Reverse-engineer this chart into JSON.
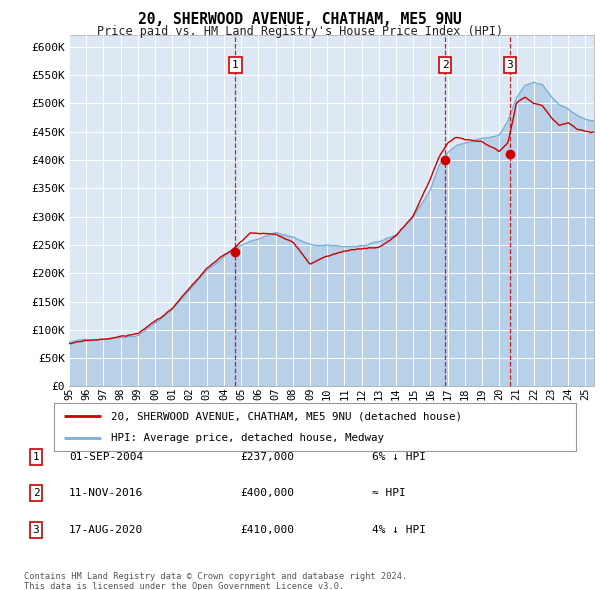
{
  "title": "20, SHERWOOD AVENUE, CHATHAM, ME5 9NU",
  "subtitle": "Price paid vs. HM Land Registry's House Price Index (HPI)",
  "fig_bg_color": "#ffffff",
  "plot_bg_color": "#dce9f5",
  "red_line_color": "#cc0000",
  "blue_line_color": "#7ab0d4",
  "fill_color": "#b8d0e8",
  "sale_dates": [
    2004.67,
    2016.86,
    2020.62
  ],
  "sale_prices": [
    237000,
    400000,
    410000
  ],
  "sale_labels": [
    "1",
    "2",
    "3"
  ],
  "sale_info": [
    {
      "label": "1",
      "date": "01-SEP-2004",
      "price": "£237,000",
      "relation": "6% ↓ HPI"
    },
    {
      "label": "2",
      "date": "11-NOV-2016",
      "price": "£400,000",
      "relation": "≈ HPI"
    },
    {
      "label": "3",
      "date": "17-AUG-2020",
      "price": "£410,000",
      "relation": "4% ↓ HPI"
    }
  ],
  "legend_line1": "20, SHERWOOD AVENUE, CHATHAM, ME5 9NU (detached house)",
  "legend_line2": "HPI: Average price, detached house, Medway",
  "footer_line1": "Contains HM Land Registry data © Crown copyright and database right 2024.",
  "footer_line2": "This data is licensed under the Open Government Licence v3.0.",
  "ylim": [
    0,
    620000
  ],
  "yticks": [
    0,
    50000,
    100000,
    150000,
    200000,
    250000,
    300000,
    350000,
    400000,
    450000,
    500000,
    550000,
    600000
  ],
  "xlim_start": 1995,
  "xlim_end": 2025.5,
  "xticks": [
    1995,
    1996,
    1997,
    1998,
    1999,
    2000,
    2001,
    2002,
    2003,
    2004,
    2005,
    2006,
    2007,
    2008,
    2009,
    2010,
    2011,
    2012,
    2013,
    2014,
    2015,
    2016,
    2017,
    2018,
    2019,
    2020,
    2021,
    2022,
    2023,
    2024,
    2025
  ]
}
